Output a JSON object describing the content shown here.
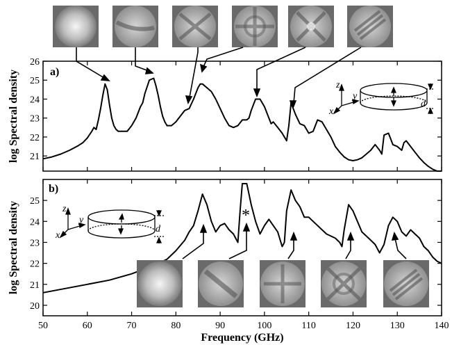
{
  "chart_data": [
    {
      "type": "line",
      "panel_label": "a)",
      "xlabel": "Frequency (GHz)",
      "ylabel": "log Spectral density",
      "xlim": [
        50,
        140
      ],
      "ylim": [
        20.2,
        26
      ],
      "yticks": [
        21,
        22,
        23,
        24,
        25,
        26
      ],
      "grid": false,
      "series": [
        {
          "x": [
            50,
            52,
            54,
            56,
            58,
            59,
            60,
            61,
            61.5,
            62,
            62.5,
            63,
            63.5,
            64,
            64.5,
            65,
            65.5,
            66,
            66.5,
            67,
            68,
            69,
            70,
            71,
            72,
            72.5,
            73,
            74,
            75,
            75.5,
            76,
            76.5,
            77,
            77.5,
            78,
            79,
            80,
            81,
            82,
            83,
            84,
            85,
            85.5,
            86,
            87,
            88,
            89,
            90,
            91,
            92,
            93,
            94,
            95,
            96,
            96.5,
            97,
            98,
            99,
            100,
            101,
            101.5,
            102,
            103,
            104,
            105,
            105.5,
            106,
            107,
            108,
            109,
            110,
            111,
            112,
            113,
            114,
            115,
            116,
            117,
            118,
            119,
            120,
            121,
            122,
            123,
            124,
            125,
            126,
            126.5,
            127,
            128,
            128.5,
            129,
            130,
            131,
            131.5,
            132,
            133,
            134,
            135,
            136,
            137,
            138,
            139,
            140
          ],
          "y": [
            20.85,
            20.95,
            21.1,
            21.3,
            21.55,
            21.7,
            21.95,
            22.3,
            22.5,
            22.4,
            22.9,
            23.5,
            24.2,
            24.8,
            24.5,
            23.7,
            23.0,
            22.6,
            22.4,
            22.3,
            22.3,
            22.3,
            22.6,
            23.0,
            23.6,
            23.8,
            24.3,
            25.0,
            25.1,
            24.7,
            24.2,
            23.6,
            23.1,
            22.8,
            22.6,
            22.6,
            22.8,
            23.1,
            23.4,
            23.5,
            24.0,
            24.6,
            24.8,
            24.8,
            24.6,
            24.4,
            24.0,
            23.5,
            23.0,
            22.6,
            22.5,
            22.6,
            22.9,
            22.9,
            23.0,
            23.4,
            24.0,
            24.0,
            23.6,
            23.0,
            22.7,
            22.8,
            22.5,
            22.2,
            21.8,
            22.6,
            23.8,
            23.2,
            22.7,
            22.6,
            22.2,
            22.3,
            22.9,
            22.8,
            22.4,
            22.0,
            21.5,
            21.2,
            20.95,
            20.8,
            20.75,
            20.8,
            20.9,
            21.1,
            21.3,
            21.6,
            21.3,
            21.1,
            22.1,
            22.2,
            21.9,
            21.6,
            21.5,
            21.3,
            21.7,
            21.8,
            21.5,
            21.2,
            20.9,
            20.65,
            20.45,
            20.3,
            20.2,
            20.1
          ]
        }
      ]
    },
    {
      "type": "line",
      "panel_label": "b)",
      "asterisk": "*",
      "xlabel": "Frequency (GHz)",
      "ylabel": "log Spectral density",
      "xlim": [
        50,
        140
      ],
      "ylim": [
        19.5,
        26
      ],
      "yticks": [
        20,
        21,
        22,
        23,
        24,
        25
      ],
      "xticks": [
        50,
        60,
        70,
        80,
        90,
        100,
        110,
        120,
        130,
        140
      ],
      "grid": false,
      "series": [
        {
          "x": [
            50,
            55,
            60,
            65,
            70,
            75,
            78,
            80,
            82,
            83,
            84,
            85,
            86,
            87,
            88,
            89,
            90,
            91,
            92,
            93,
            94,
            94.5,
            95,
            96,
            97,
            98,
            99,
            100,
            101,
            102,
            103,
            104,
            104.5,
            105,
            106,
            107,
            108,
            109,
            110,
            111,
            112,
            113,
            114,
            115,
            116,
            117,
            117.5,
            118,
            119,
            120,
            121,
            122,
            123,
            124,
            125,
            126,
            127,
            128,
            129,
            130,
            131,
            132,
            133,
            134,
            135,
            136,
            137,
            138,
            139,
            140
          ],
          "y": [
            20.6,
            20.8,
            21.0,
            21.2,
            21.5,
            21.9,
            22.2,
            22.6,
            23.1,
            23.5,
            23.8,
            24.5,
            25.3,
            24.8,
            24.0,
            23.5,
            23.8,
            23.9,
            23.6,
            23.4,
            23.0,
            24.5,
            25.8,
            25.8,
            24.8,
            24.0,
            23.4,
            23.8,
            24.1,
            23.8,
            23.5,
            22.8,
            23.0,
            24.5,
            25.5,
            25.0,
            24.7,
            24.2,
            24.2,
            24.0,
            23.8,
            23.6,
            23.4,
            23.3,
            23.2,
            23.0,
            22.8,
            23.6,
            24.8,
            24.5,
            24.0,
            23.5,
            23.3,
            23.1,
            22.9,
            22.5,
            22.9,
            23.8,
            24.2,
            24.0,
            23.5,
            23.3,
            23.6,
            23.4,
            23.2,
            22.8,
            22.6,
            22.3,
            22.1,
            22.0
          ]
        }
      ]
    }
  ],
  "insets": {
    "axis_z": "z",
    "axis_y": "y",
    "axis_x": "x",
    "thickness": "d"
  }
}
